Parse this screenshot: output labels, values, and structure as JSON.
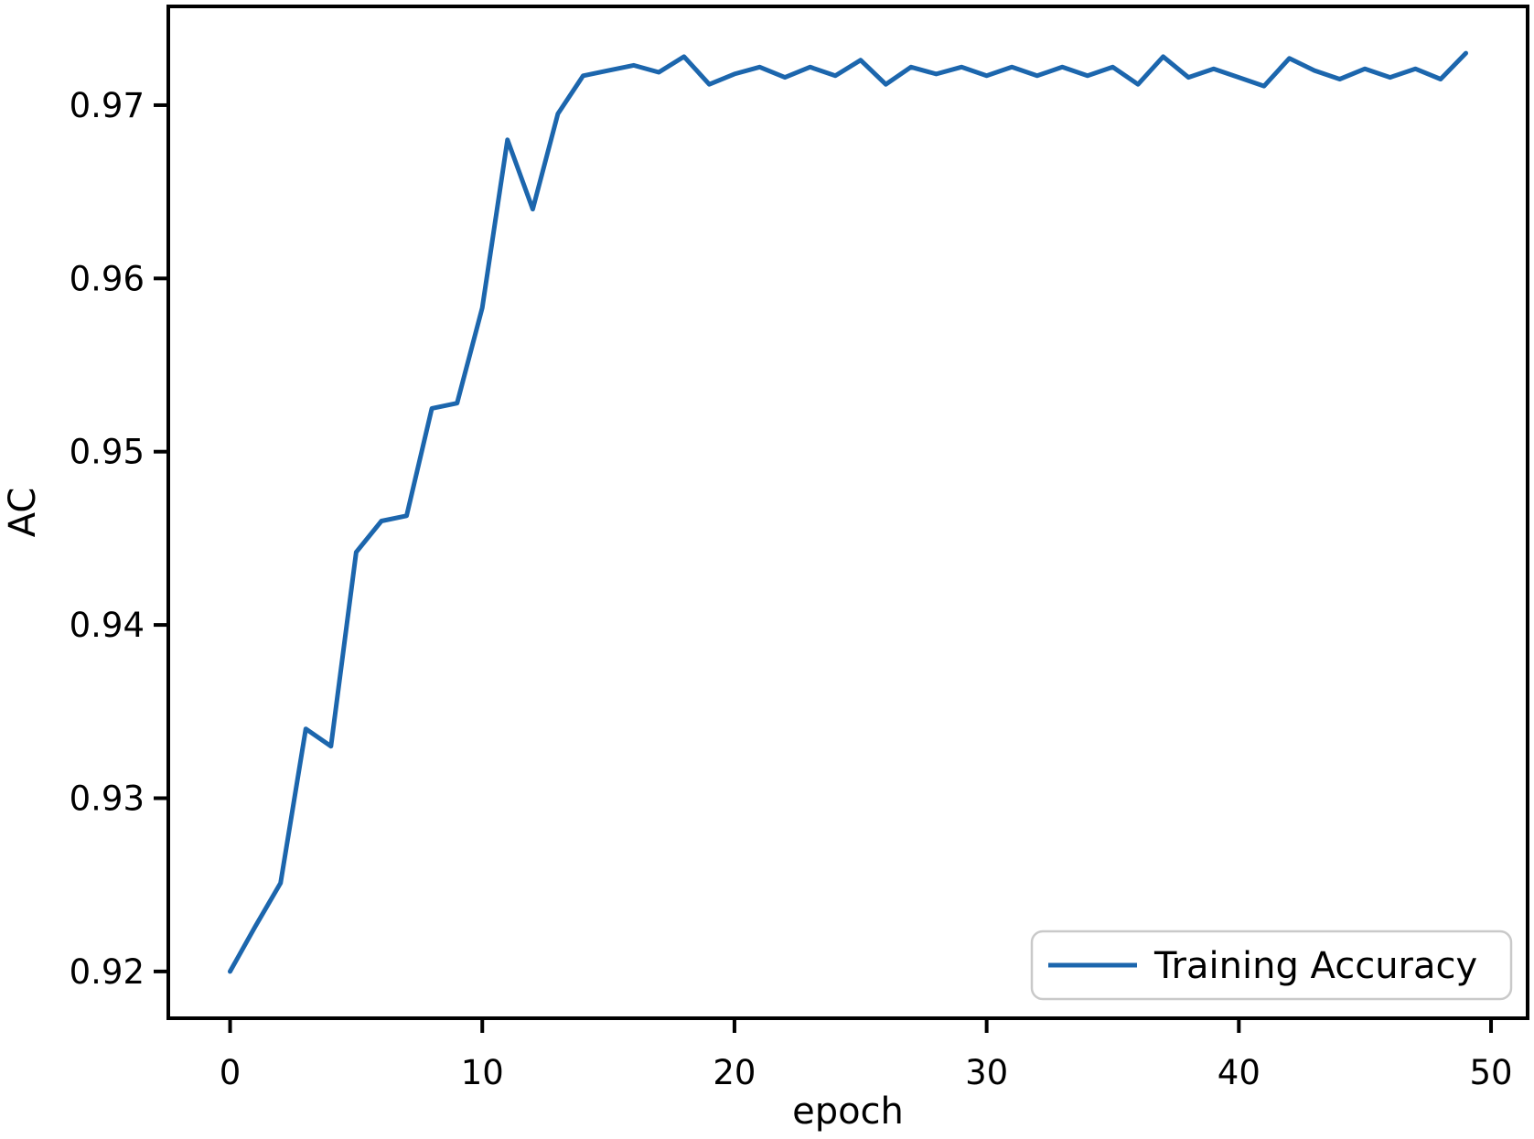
{
  "figure": {
    "background_color": "#ffffff",
    "text_color": "#000000",
    "spine_color": "#000000",
    "legend_border_color": "#c9c9c9"
  },
  "chart_data": {
    "type": "line",
    "title": "",
    "xlabel": "epoch",
    "ylabel": "AC",
    "xlim": [
      -2.45,
      51.45
    ],
    "ylim": [
      0.9173,
      0.9757
    ],
    "xticks": [
      0,
      10,
      20,
      30,
      40,
      50
    ],
    "yticks": [
      0.92,
      0.93,
      0.94,
      0.95,
      0.96,
      0.97
    ],
    "grid": false,
    "legend_position": "lower right",
    "x": [
      0,
      1,
      2,
      3,
      4,
      5,
      6,
      7,
      8,
      9,
      10,
      11,
      12,
      13,
      14,
      15,
      16,
      17,
      18,
      19,
      20,
      21,
      22,
      23,
      24,
      25,
      26,
      27,
      28,
      29,
      30,
      31,
      32,
      33,
      34,
      35,
      36,
      37,
      38,
      39,
      40,
      41,
      42,
      43,
      44,
      45,
      46,
      47,
      48,
      49
    ],
    "series": [
      {
        "name": "Training Accuracy",
        "color": "#1c66ad",
        "values": [
          0.92,
          0.9226,
          0.9251,
          0.934,
          0.933,
          0.9442,
          0.946,
          0.9463,
          0.9525,
          0.9528,
          0.9583,
          0.968,
          0.964,
          0.9695,
          0.9717,
          0.972,
          0.9723,
          0.9719,
          0.9728,
          0.9712,
          0.9718,
          0.9722,
          0.9716,
          0.9722,
          0.9717,
          0.9726,
          0.9712,
          0.9722,
          0.9718,
          0.9722,
          0.9717,
          0.9722,
          0.9717,
          0.9722,
          0.9717,
          0.9722,
          0.9712,
          0.9728,
          0.9716,
          0.9721,
          0.9716,
          0.9711,
          0.9727,
          0.972,
          0.9715,
          0.9721,
          0.9716,
          0.9721,
          0.9715,
          0.973
        ]
      }
    ]
  }
}
